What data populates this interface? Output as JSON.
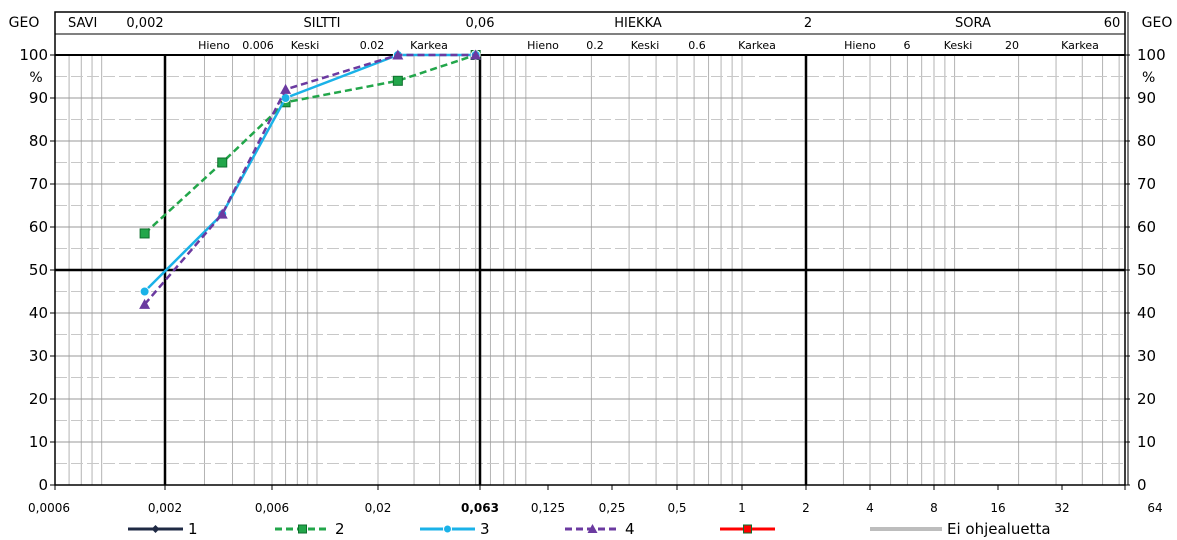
{
  "chart_data": {
    "type": "line",
    "title": "",
    "xlabel": "",
    "ylabel": "%",
    "x_scale": "log",
    "xlim": [
      0.0006,
      64
    ],
    "ylim": [
      0,
      100
    ],
    "grid": true,
    "legend_position": "bottom",
    "x_ticks": [
      "0,0006",
      "0,002",
      "0,006",
      "0,02",
      "0,063",
      "0,125",
      "0,25",
      "0,5",
      "1",
      "2",
      "4",
      "8",
      "16",
      "32",
      "64"
    ],
    "y_ticks": [
      "0",
      "10",
      "20",
      "30",
      "40",
      "50",
      "60",
      "70",
      "80",
      "90",
      "100"
    ],
    "geo_label": "GEO",
    "unit_label": "%",
    "classes_top": [
      "SAVI",
      "0,002",
      "SILTTI",
      "0,06",
      "HIEKKA",
      "2",
      "SORA",
      "60"
    ],
    "subclasses": {
      "siltti": [
        "Hieno",
        "0.006",
        "Keski",
        "0.02",
        "Karkea"
      ],
      "hiekka": [
        "Hieno",
        "0.2",
        "Keski",
        "0.6",
        "Karkea"
      ],
      "sora": [
        "Hieno",
        "6",
        "Keski",
        "20",
        "Karkea"
      ]
    },
    "series": [
      {
        "name": "1",
        "color": "#1f2a44",
        "dash": "solid",
        "marker": "diamond",
        "x": [],
        "y": []
      },
      {
        "name": "2",
        "color": "#22a64a",
        "dash": "dashed",
        "marker": "square",
        "x": [
          0.0016,
          0.0036,
          0.007,
          0.025,
          0.06
        ],
        "y": [
          58.5,
          75,
          89,
          94,
          100
        ]
      },
      {
        "name": "3",
        "color": "#1ab2e8",
        "dash": "solid",
        "marker": "circle",
        "x": [
          0.0016,
          0.0036,
          0.007,
          0.025,
          0.06
        ],
        "y": [
          45,
          63,
          90,
          100,
          100
        ]
      },
      {
        "name": "4",
        "color": "#6b3aa0",
        "dash": "dashed",
        "marker": "triangle",
        "x": [
          0.0016,
          0.0036,
          0.007,
          0.025,
          0.06
        ],
        "y": [
          42,
          63,
          92,
          100,
          100
        ]
      },
      {
        "name": "",
        "color": "#ff0000",
        "dash": "solid",
        "marker": "square",
        "x": [],
        "y": []
      },
      {
        "name": "Ei ohjealuetta",
        "color": "#bdbdbd",
        "dash": "solid",
        "marker": "none",
        "x": [],
        "y": []
      }
    ]
  }
}
